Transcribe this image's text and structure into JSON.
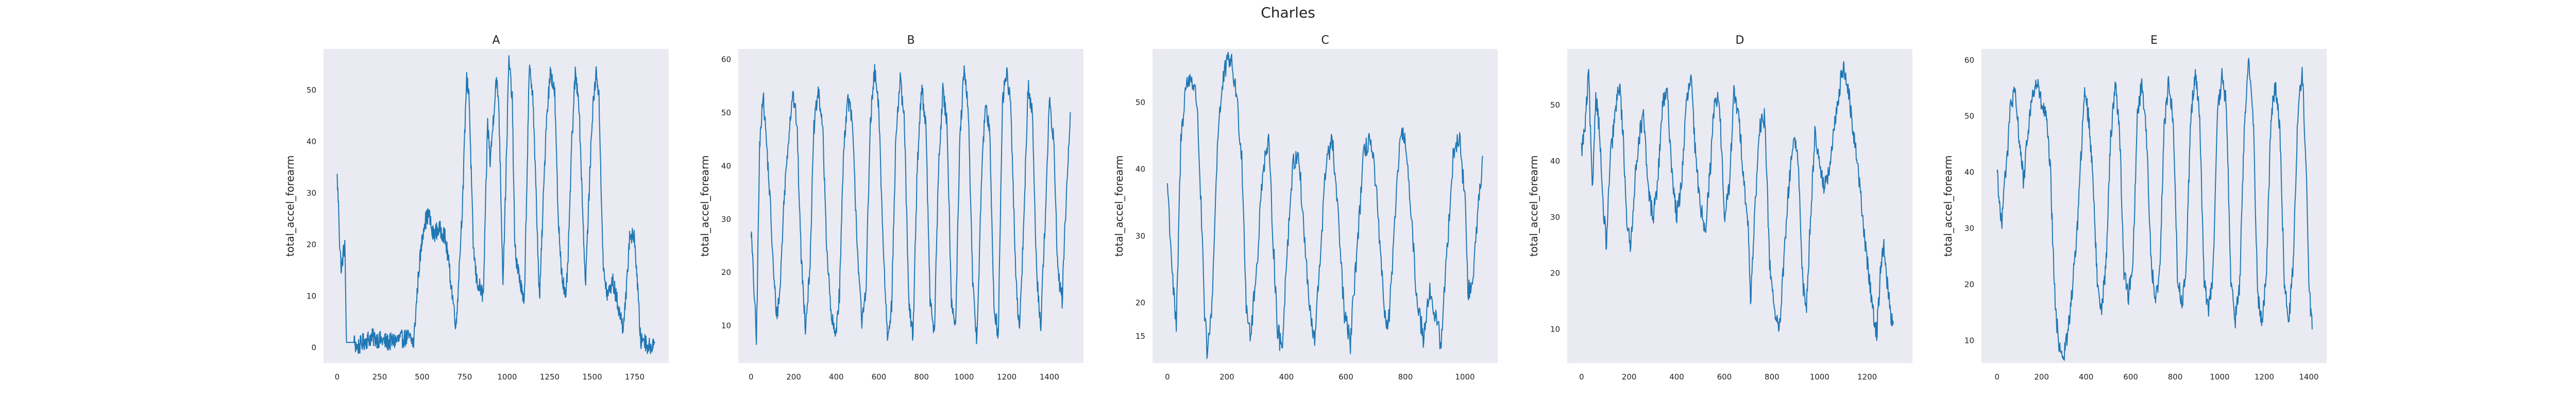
{
  "figure": {
    "title": "Charles"
  },
  "colors": {
    "line": "#1f77b4",
    "axes_bg": "#eaeaf2",
    "text": "#222222"
  },
  "chart_data": [
    {
      "type": "line",
      "title": "A",
      "xlabel": "",
      "ylabel": "total_accel_forearm",
      "xlim": [
        -80,
        1950
      ],
      "ylim": [
        -3,
        58
      ],
      "xticks": [
        0,
        250,
        500,
        750,
        1000,
        1250,
        1500,
        1750
      ],
      "yticks": [
        0,
        10,
        20,
        30,
        40,
        50
      ],
      "grid": false,
      "anchors": [
        [
          0,
          33
        ],
        [
          10,
          26
        ],
        [
          15,
          20
        ],
        [
          25,
          15
        ],
        [
          35,
          18
        ],
        [
          45,
          20
        ],
        [
          55,
          1
        ],
        [
          100,
          1
        ],
        [
          120,
          0
        ],
        [
          150,
          1
        ],
        [
          200,
          2
        ],
        [
          300,
          1
        ],
        [
          420,
          2
        ],
        [
          450,
          1
        ],
        [
          480,
          15
        ],
        [
          510,
          24
        ],
        [
          540,
          26
        ],
        [
          560,
          22
        ],
        [
          600,
          23
        ],
        [
          630,
          22
        ],
        [
          650,
          18
        ],
        [
          700,
          4
        ],
        [
          740,
          30
        ],
        [
          760,
          52
        ],
        [
          775,
          50
        ],
        [
          800,
          20
        ],
        [
          820,
          13
        ],
        [
          860,
          10
        ],
        [
          885,
          44
        ],
        [
          900,
          36
        ],
        [
          935,
          52
        ],
        [
          950,
          48
        ],
        [
          975,
          13
        ],
        [
          990,
          30
        ],
        [
          1010,
          56
        ],
        [
          1030,
          48
        ],
        [
          1045,
          19
        ],
        [
          1070,
          14
        ],
        [
          1100,
          8
        ],
        [
          1130,
          54
        ],
        [
          1150,
          50
        ],
        [
          1190,
          9
        ],
        [
          1230,
          44
        ],
        [
          1255,
          54
        ],
        [
          1280,
          49
        ],
        [
          1300,
          25
        ],
        [
          1320,
          15
        ],
        [
          1345,
          9
        ],
        [
          1360,
          19
        ],
        [
          1380,
          40
        ],
        [
          1400,
          53
        ],
        [
          1420,
          49
        ],
        [
          1460,
          12
        ],
        [
          1500,
          45
        ],
        [
          1525,
          54
        ],
        [
          1540,
          48
        ],
        [
          1565,
          15
        ],
        [
          1590,
          10
        ],
        [
          1620,
          13
        ],
        [
          1640,
          10
        ],
        [
          1680,
          4
        ],
        [
          1700,
          10
        ],
        [
          1720,
          22
        ],
        [
          1750,
          21
        ],
        [
          1770,
          10
        ],
        [
          1785,
          1
        ],
        [
          1800,
          2
        ],
        [
          1830,
          0
        ],
        [
          1870,
          1
        ]
      ]
    },
    {
      "type": "line",
      "title": "B",
      "xlabel": "",
      "ylabel": "total_accel_forearm",
      "xlim": [
        -60,
        1560
      ],
      "ylim": [
        3,
        62
      ],
      "xticks": [
        0,
        200,
        400,
        600,
        800,
        1000,
        1200,
        1400
      ],
      "yticks": [
        10,
        20,
        30,
        40,
        50,
        60
      ],
      "grid": false,
      "anchors": [
        [
          0,
          28
        ],
        [
          15,
          16
        ],
        [
          25,
          7
        ],
        [
          40,
          43
        ],
        [
          55,
          54
        ],
        [
          70,
          46
        ],
        [
          90,
          33
        ],
        [
          105,
          20
        ],
        [
          120,
          12
        ],
        [
          135,
          16
        ],
        [
          155,
          34
        ],
        [
          175,
          45
        ],
        [
          195,
          54
        ],
        [
          215,
          48
        ],
        [
          235,
          23
        ],
        [
          255,
          10
        ],
        [
          275,
          20
        ],
        [
          295,
          47
        ],
        [
          315,
          54
        ],
        [
          335,
          48
        ],
        [
          355,
          25
        ],
        [
          375,
          12
        ],
        [
          395,
          8
        ],
        [
          415,
          16
        ],
        [
          435,
          44
        ],
        [
          455,
          53
        ],
        [
          475,
          48
        ],
        [
          500,
          24
        ],
        [
          520,
          10
        ],
        [
          540,
          18
        ],
        [
          560,
          48
        ],
        [
          580,
          58
        ],
        [
          600,
          50
        ],
        [
          620,
          25
        ],
        [
          640,
          8
        ],
        [
          660,
          14
        ],
        [
          680,
          46
        ],
        [
          700,
          56
        ],
        [
          720,
          48
        ],
        [
          740,
          14
        ],
        [
          760,
          8
        ],
        [
          780,
          40
        ],
        [
          800,
          55
        ],
        [
          820,
          48
        ],
        [
          840,
          15
        ],
        [
          860,
          8
        ],
        [
          880,
          40
        ],
        [
          900,
          54
        ],
        [
          920,
          48
        ],
        [
          940,
          15
        ],
        [
          960,
          10
        ],
        [
          980,
          45
        ],
        [
          1000,
          58
        ],
        [
          1020,
          50
        ],
        [
          1040,
          18
        ],
        [
          1060,
          7
        ],
        [
          1080,
          36
        ],
        [
          1100,
          52
        ],
        [
          1120,
          46
        ],
        [
          1140,
          14
        ],
        [
          1160,
          8
        ],
        [
          1180,
          52
        ],
        [
          1200,
          58
        ],
        [
          1220,
          50
        ],
        [
          1240,
          22
        ],
        [
          1260,
          8
        ],
        [
          1280,
          30
        ],
        [
          1300,
          55
        ],
        [
          1320,
          50
        ],
        [
          1340,
          20
        ],
        [
          1360,
          10
        ],
        [
          1380,
          30
        ],
        [
          1400,
          52
        ],
        [
          1420,
          45
        ],
        [
          1440,
          20
        ],
        [
          1460,
          15
        ],
        [
          1480,
          35
        ],
        [
          1500,
          50
        ]
      ]
    },
    {
      "type": "line",
      "title": "C",
      "xlabel": "",
      "ylabel": "total_accel_forearm",
      "xlim": [
        -50,
        1110
      ],
      "ylim": [
        11,
        58
      ],
      "xticks": [
        0,
        200,
        400,
        600,
        800,
        1000
      ],
      "yticks": [
        15,
        20,
        30,
        40,
        50
      ],
      "grid": false,
      "anchors": [
        [
          0,
          38
        ],
        [
          10,
          30
        ],
        [
          20,
          22
        ],
        [
          30,
          16
        ],
        [
          45,
          44
        ],
        [
          60,
          52
        ],
        [
          80,
          54
        ],
        [
          100,
          50
        ],
        [
          115,
          32
        ],
        [
          125,
          18
        ],
        [
          135,
          12
        ],
        [
          150,
          20
        ],
        [
          170,
          46
        ],
        [
          190,
          54
        ],
        [
          210,
          57
        ],
        [
          230,
          52
        ],
        [
          250,
          42
        ],
        [
          265,
          20
        ],
        [
          280,
          15
        ],
        [
          300,
          25
        ],
        [
          320,
          40
        ],
        [
          340,
          44
        ],
        [
          355,
          30
        ],
        [
          370,
          16
        ],
        [
          385,
          13
        ],
        [
          400,
          26
        ],
        [
          420,
          40
        ],
        [
          440,
          43
        ],
        [
          460,
          30
        ],
        [
          480,
          18
        ],
        [
          495,
          14
        ],
        [
          515,
          28
        ],
        [
          535,
          42
        ],
        [
          555,
          44
        ],
        [
          575,
          32
        ],
        [
          595,
          18
        ],
        [
          615,
          14
        ],
        [
          640,
          30
        ],
        [
          660,
          42
        ],
        [
          680,
          45
        ],
        [
          700,
          38
        ],
        [
          720,
          24
        ],
        [
          740,
          15
        ],
        [
          760,
          28
        ],
        [
          780,
          44
        ],
        [
          800,
          45
        ],
        [
          820,
          32
        ],
        [
          840,
          20
        ],
        [
          860,
          15
        ],
        [
          880,
          22
        ],
        [
          900,
          18
        ],
        [
          920,
          14
        ],
        [
          940,
          28
        ],
        [
          960,
          42
        ],
        [
          980,
          45
        ],
        [
          1000,
          36
        ],
        [
          1010,
          22
        ],
        [
          1025,
          22
        ],
        [
          1040,
          32
        ],
        [
          1060,
          42
        ]
      ]
    },
    {
      "type": "line",
      "title": "D",
      "xlabel": "",
      "ylabel": "total_accel_forearm",
      "xlim": [
        -60,
        1390
      ],
      "ylim": [
        4,
        60
      ],
      "xticks": [
        0,
        200,
        400,
        600,
        800,
        1000,
        1200
      ],
      "yticks": [
        10,
        20,
        30,
        40,
        50
      ],
      "grid": false,
      "anchors": [
        [
          0,
          42
        ],
        [
          15,
          46
        ],
        [
          30,
          56
        ],
        [
          45,
          34
        ],
        [
          60,
          52
        ],
        [
          75,
          46
        ],
        [
          90,
          32
        ],
        [
          105,
          25
        ],
        [
          120,
          40
        ],
        [
          140,
          48
        ],
        [
          160,
          54
        ],
        [
          175,
          44
        ],
        [
          190,
          30
        ],
        [
          205,
          24
        ],
        [
          220,
          34
        ],
        [
          240,
          44
        ],
        [
          260,
          48
        ],
        [
          280,
          35
        ],
        [
          300,
          30
        ],
        [
          320,
          36
        ],
        [
          340,
          50
        ],
        [
          360,
          52
        ],
        [
          380,
          38
        ],
        [
          400,
          30
        ],
        [
          420,
          36
        ],
        [
          440,
          50
        ],
        [
          460,
          55
        ],
        [
          480,
          40
        ],
        [
          500,
          32
        ],
        [
          520,
          28
        ],
        [
          540,
          38
        ],
        [
          560,
          52
        ],
        [
          580,
          50
        ],
        [
          600,
          30
        ],
        [
          620,
          35
        ],
        [
          640,
          52
        ],
        [
          660,
          48
        ],
        [
          680,
          38
        ],
        [
          700,
          28
        ],
        [
          710,
          15
        ],
        [
          730,
          33
        ],
        [
          750,
          46
        ],
        [
          770,
          48
        ],
        [
          790,
          22
        ],
        [
          810,
          14
        ],
        [
          830,
          9
        ],
        [
          850,
          22
        ],
        [
          870,
          35
        ],
        [
          890,
          44
        ],
        [
          910,
          40
        ],
        [
          930,
          18
        ],
        [
          945,
          14
        ],
        [
          960,
          28
        ],
        [
          980,
          45
        ],
        [
          1000,
          40
        ],
        [
          1020,
          35
        ],
        [
          1040,
          38
        ],
        [
          1060,
          45
        ],
        [
          1080,
          52
        ],
        [
          1100,
          57
        ],
        [
          1120,
          53
        ],
        [
          1140,
          45
        ],
        [
          1160,
          40
        ],
        [
          1180,
          30
        ],
        [
          1200,
          22
        ],
        [
          1220,
          15
        ],
        [
          1240,
          9
        ],
        [
          1255,
          20
        ],
        [
          1270,
          25
        ],
        [
          1285,
          18
        ],
        [
          1300,
          12
        ],
        [
          1310,
          11
        ]
      ]
    },
    {
      "type": "line",
      "title": "E",
      "xlabel": "",
      "ylabel": "total_accel_forearm",
      "xlim": [
        -70,
        1480
      ],
      "ylim": [
        6,
        62
      ],
      "xticks": [
        0,
        200,
        400,
        600,
        800,
        1000,
        1200,
        1400
      ],
      "yticks": [
        10,
        20,
        30,
        40,
        50,
        60
      ],
      "grid": false,
      "anchors": [
        [
          0,
          41
        ],
        [
          10,
          35
        ],
        [
          20,
          30
        ],
        [
          30,
          38
        ],
        [
          45,
          42
        ],
        [
          60,
          52
        ],
        [
          80,
          54
        ],
        [
          100,
          46
        ],
        [
          120,
          38
        ],
        [
          140,
          48
        ],
        [
          160,
          54
        ],
        [
          180,
          56
        ],
        [
          200,
          52
        ],
        [
          220,
          50
        ],
        [
          240,
          40
        ],
        [
          255,
          22
        ],
        [
          265,
          14
        ],
        [
          280,
          9
        ],
        [
          300,
          7
        ],
        [
          320,
          12
        ],
        [
          340,
          20
        ],
        [
          360,
          30
        ],
        [
          380,
          45
        ],
        [
          395,
          55
        ],
        [
          410,
          50
        ],
        [
          430,
          40
        ],
        [
          450,
          20
        ],
        [
          470,
          16
        ],
        [
          490,
          24
        ],
        [
          510,
          46
        ],
        [
          530,
          56
        ],
        [
          550,
          48
        ],
        [
          570,
          22
        ],
        [
          590,
          18
        ],
        [
          610,
          24
        ],
        [
          630,
          50
        ],
        [
          650,
          56
        ],
        [
          670,
          48
        ],
        [
          690,
          25
        ],
        [
          710,
          17
        ],
        [
          730,
          22
        ],
        [
          750,
          48
        ],
        [
          770,
          56
        ],
        [
          790,
          50
        ],
        [
          810,
          22
        ],
        [
          830,
          16
        ],
        [
          850,
          24
        ],
        [
          870,
          50
        ],
        [
          890,
          58
        ],
        [
          910,
          50
        ],
        [
          930,
          20
        ],
        [
          950,
          16
        ],
        [
          970,
          22
        ],
        [
          990,
          50
        ],
        [
          1010,
          57
        ],
        [
          1030,
          52
        ],
        [
          1050,
          20
        ],
        [
          1070,
          14
        ],
        [
          1090,
          20
        ],
        [
          1110,
          48
        ],
        [
          1130,
          60
        ],
        [
          1150,
          50
        ],
        [
          1170,
          18
        ],
        [
          1190,
          13
        ],
        [
          1210,
          22
        ],
        [
          1230,
          50
        ],
        [
          1250,
          56
        ],
        [
          1270,
          48
        ],
        [
          1290,
          20
        ],
        [
          1310,
          13
        ],
        [
          1330,
          24
        ],
        [
          1350,
          50
        ],
        [
          1370,
          58
        ],
        [
          1390,
          40
        ],
        [
          1400,
          20
        ],
        [
          1415,
          12
        ]
      ]
    }
  ]
}
